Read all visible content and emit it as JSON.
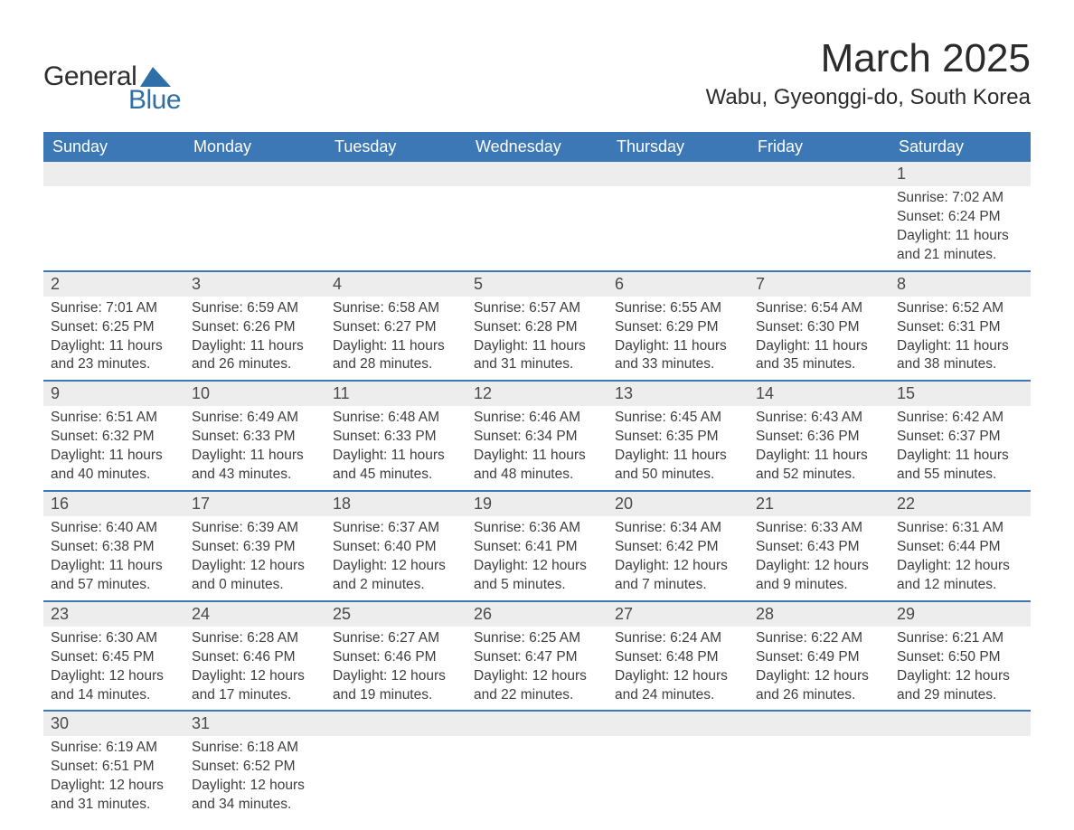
{
  "logo": {
    "text1": "General",
    "text2": "Blue",
    "triangle_color": "#2f6fa7"
  },
  "title": "March 2025",
  "location": "Wabu, Gyeonggi-do, South Korea",
  "colors": {
    "header_bg": "#3b78b5",
    "header_text": "#ffffff",
    "daynum_bg": "#ededed",
    "row_divider": "#3b78b5",
    "text": "#3a3a3a"
  },
  "typography": {
    "title_fontsize": 44,
    "location_fontsize": 24,
    "dayheader_fontsize": 18,
    "daynum_fontsize": 18,
    "body_fontsize": 15.5
  },
  "day_headers": [
    "Sunday",
    "Monday",
    "Tuesday",
    "Wednesday",
    "Thursday",
    "Friday",
    "Saturday"
  ],
  "weeks": [
    {
      "daynums": [
        "",
        "",
        "",
        "",
        "",
        "",
        "1"
      ],
      "cells": [
        null,
        null,
        null,
        null,
        null,
        null,
        {
          "sunrise": "Sunrise: 7:02 AM",
          "sunset": "Sunset: 6:24 PM",
          "d1": "Daylight: 11 hours",
          "d2": "and 21 minutes."
        }
      ]
    },
    {
      "daynums": [
        "2",
        "3",
        "4",
        "5",
        "6",
        "7",
        "8"
      ],
      "cells": [
        {
          "sunrise": "Sunrise: 7:01 AM",
          "sunset": "Sunset: 6:25 PM",
          "d1": "Daylight: 11 hours",
          "d2": "and 23 minutes."
        },
        {
          "sunrise": "Sunrise: 6:59 AM",
          "sunset": "Sunset: 6:26 PM",
          "d1": "Daylight: 11 hours",
          "d2": "and 26 minutes."
        },
        {
          "sunrise": "Sunrise: 6:58 AM",
          "sunset": "Sunset: 6:27 PM",
          "d1": "Daylight: 11 hours",
          "d2": "and 28 minutes."
        },
        {
          "sunrise": "Sunrise: 6:57 AM",
          "sunset": "Sunset: 6:28 PM",
          "d1": "Daylight: 11 hours",
          "d2": "and 31 minutes."
        },
        {
          "sunrise": "Sunrise: 6:55 AM",
          "sunset": "Sunset: 6:29 PM",
          "d1": "Daylight: 11 hours",
          "d2": "and 33 minutes."
        },
        {
          "sunrise": "Sunrise: 6:54 AM",
          "sunset": "Sunset: 6:30 PM",
          "d1": "Daylight: 11 hours",
          "d2": "and 35 minutes."
        },
        {
          "sunrise": "Sunrise: 6:52 AM",
          "sunset": "Sunset: 6:31 PM",
          "d1": "Daylight: 11 hours",
          "d2": "and 38 minutes."
        }
      ]
    },
    {
      "daynums": [
        "9",
        "10",
        "11",
        "12",
        "13",
        "14",
        "15"
      ],
      "cells": [
        {
          "sunrise": "Sunrise: 6:51 AM",
          "sunset": "Sunset: 6:32 PM",
          "d1": "Daylight: 11 hours",
          "d2": "and 40 minutes."
        },
        {
          "sunrise": "Sunrise: 6:49 AM",
          "sunset": "Sunset: 6:33 PM",
          "d1": "Daylight: 11 hours",
          "d2": "and 43 minutes."
        },
        {
          "sunrise": "Sunrise: 6:48 AM",
          "sunset": "Sunset: 6:33 PM",
          "d1": "Daylight: 11 hours",
          "d2": "and 45 minutes."
        },
        {
          "sunrise": "Sunrise: 6:46 AM",
          "sunset": "Sunset: 6:34 PM",
          "d1": "Daylight: 11 hours",
          "d2": "and 48 minutes."
        },
        {
          "sunrise": "Sunrise: 6:45 AM",
          "sunset": "Sunset: 6:35 PM",
          "d1": "Daylight: 11 hours",
          "d2": "and 50 minutes."
        },
        {
          "sunrise": "Sunrise: 6:43 AM",
          "sunset": "Sunset: 6:36 PM",
          "d1": "Daylight: 11 hours",
          "d2": "and 52 minutes."
        },
        {
          "sunrise": "Sunrise: 6:42 AM",
          "sunset": "Sunset: 6:37 PM",
          "d1": "Daylight: 11 hours",
          "d2": "and 55 minutes."
        }
      ]
    },
    {
      "daynums": [
        "16",
        "17",
        "18",
        "19",
        "20",
        "21",
        "22"
      ],
      "cells": [
        {
          "sunrise": "Sunrise: 6:40 AM",
          "sunset": "Sunset: 6:38 PM",
          "d1": "Daylight: 11 hours",
          "d2": "and 57 minutes."
        },
        {
          "sunrise": "Sunrise: 6:39 AM",
          "sunset": "Sunset: 6:39 PM",
          "d1": "Daylight: 12 hours",
          "d2": "and 0 minutes."
        },
        {
          "sunrise": "Sunrise: 6:37 AM",
          "sunset": "Sunset: 6:40 PM",
          "d1": "Daylight: 12 hours",
          "d2": "and 2 minutes."
        },
        {
          "sunrise": "Sunrise: 6:36 AM",
          "sunset": "Sunset: 6:41 PM",
          "d1": "Daylight: 12 hours",
          "d2": "and 5 minutes."
        },
        {
          "sunrise": "Sunrise: 6:34 AM",
          "sunset": "Sunset: 6:42 PM",
          "d1": "Daylight: 12 hours",
          "d2": "and 7 minutes."
        },
        {
          "sunrise": "Sunrise: 6:33 AM",
          "sunset": "Sunset: 6:43 PM",
          "d1": "Daylight: 12 hours",
          "d2": "and 9 minutes."
        },
        {
          "sunrise": "Sunrise: 6:31 AM",
          "sunset": "Sunset: 6:44 PM",
          "d1": "Daylight: 12 hours",
          "d2": "and 12 minutes."
        }
      ]
    },
    {
      "daynums": [
        "23",
        "24",
        "25",
        "26",
        "27",
        "28",
        "29"
      ],
      "cells": [
        {
          "sunrise": "Sunrise: 6:30 AM",
          "sunset": "Sunset: 6:45 PM",
          "d1": "Daylight: 12 hours",
          "d2": "and 14 minutes."
        },
        {
          "sunrise": "Sunrise: 6:28 AM",
          "sunset": "Sunset: 6:46 PM",
          "d1": "Daylight: 12 hours",
          "d2": "and 17 minutes."
        },
        {
          "sunrise": "Sunrise: 6:27 AM",
          "sunset": "Sunset: 6:46 PM",
          "d1": "Daylight: 12 hours",
          "d2": "and 19 minutes."
        },
        {
          "sunrise": "Sunrise: 6:25 AM",
          "sunset": "Sunset: 6:47 PM",
          "d1": "Daylight: 12 hours",
          "d2": "and 22 minutes."
        },
        {
          "sunrise": "Sunrise: 6:24 AM",
          "sunset": "Sunset: 6:48 PM",
          "d1": "Daylight: 12 hours",
          "d2": "and 24 minutes."
        },
        {
          "sunrise": "Sunrise: 6:22 AM",
          "sunset": "Sunset: 6:49 PM",
          "d1": "Daylight: 12 hours",
          "d2": "and 26 minutes."
        },
        {
          "sunrise": "Sunrise: 6:21 AM",
          "sunset": "Sunset: 6:50 PM",
          "d1": "Daylight: 12 hours",
          "d2": "and 29 minutes."
        }
      ]
    },
    {
      "daynums": [
        "30",
        "31",
        "",
        "",
        "",
        "",
        ""
      ],
      "cells": [
        {
          "sunrise": "Sunrise: 6:19 AM",
          "sunset": "Sunset: 6:51 PM",
          "d1": "Daylight: 12 hours",
          "d2": "and 31 minutes."
        },
        {
          "sunrise": "Sunrise: 6:18 AM",
          "sunset": "Sunset: 6:52 PM",
          "d1": "Daylight: 12 hours",
          "d2": "and 34 minutes."
        },
        null,
        null,
        null,
        null,
        null
      ]
    }
  ]
}
